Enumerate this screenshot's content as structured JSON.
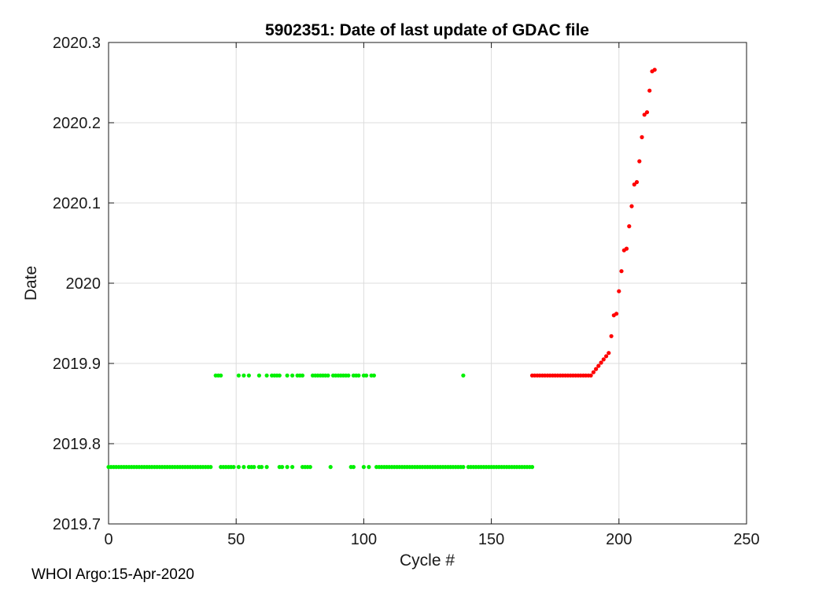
{
  "figure": {
    "footer_credit": "WHOI Argo:15-Apr-2020"
  },
  "chart_data": {
    "type": "scatter",
    "title": "5902351: Date of last update of GDAC file",
    "xlabel": "Cycle #",
    "ylabel": "Date",
    "xlim": [
      0,
      250
    ],
    "ylim": [
      2019.7,
      2020.3
    ],
    "xticks": [
      0,
      50,
      100,
      150,
      200,
      250
    ],
    "xtick_labels": [
      "0",
      "50",
      "100",
      "150",
      "200",
      "250"
    ],
    "yticks": [
      2019.7,
      2019.8,
      2019.9,
      2020,
      2020.1,
      2020.2,
      2020.3
    ],
    "ytick_labels": [
      "2019.7",
      "2019.8",
      "2019.9",
      "2020",
      "2020.1",
      "2020.2",
      "2020.3"
    ],
    "grid": true,
    "legend": "none",
    "colors": {
      "grid": "#dcdcdc",
      "axis": "#1a1a1a",
      "green_series": "#00f000",
      "red_series": "#ff0000"
    },
    "marker_diameter_px": 5.2,
    "series": [
      {
        "name": "green-lower-band",
        "color": "#00f000",
        "y": 2019.771,
        "cycles": [
          0,
          1,
          2,
          3,
          4,
          5,
          6,
          7,
          8,
          9,
          10,
          11,
          12,
          13,
          14,
          15,
          16,
          17,
          18,
          19,
          20,
          21,
          22,
          23,
          24,
          25,
          26,
          27,
          28,
          29,
          30,
          31,
          32,
          33,
          34,
          35,
          36,
          37,
          38,
          39,
          40,
          44,
          45,
          46,
          47,
          48,
          49,
          51,
          53,
          55,
          56,
          57,
          59,
          60,
          62,
          67,
          68,
          70,
          72,
          76,
          77,
          78,
          79,
          87,
          95,
          96,
          100,
          102,
          105,
          106,
          107,
          108,
          109,
          110,
          111,
          112,
          113,
          114,
          115,
          116,
          117,
          118,
          119,
          120,
          121,
          122,
          123,
          124,
          125,
          126,
          127,
          128,
          129,
          130,
          131,
          132,
          133,
          134,
          135,
          136,
          137,
          138,
          139,
          141,
          142,
          143,
          144,
          145,
          146,
          147,
          148,
          149,
          150,
          151,
          152,
          153,
          154,
          155,
          156,
          157,
          158,
          159,
          160,
          161,
          162,
          163,
          164,
          165,
          166
        ]
      },
      {
        "name": "green-upper-band",
        "color": "#00f000",
        "y": 2019.885,
        "cycles": [
          42,
          43,
          44,
          51,
          53,
          55,
          59,
          62,
          64,
          65,
          66,
          67,
          70,
          72,
          74,
          75,
          76,
          80,
          81,
          82,
          83,
          84,
          85,
          86,
          88,
          89,
          90,
          91,
          92,
          93,
          94,
          96,
          97,
          98,
          100,
          101,
          103,
          104,
          139
        ]
      },
      {
        "name": "red-flat-segment",
        "color": "#ff0000",
        "y": 2019.885,
        "cycles": [
          166,
          167,
          168,
          169,
          170,
          171,
          172,
          173,
          174,
          175,
          176,
          177,
          178,
          179,
          180,
          181,
          182,
          183,
          184,
          185,
          186,
          187,
          188,
          189
        ]
      },
      {
        "name": "red-rising-segment",
        "color": "#ff0000",
        "points": [
          [
            190,
            2019.889
          ],
          [
            191,
            2019.893
          ],
          [
            192,
            2019.897
          ],
          [
            193,
            2019.901
          ],
          [
            194,
            2019.905
          ],
          [
            195,
            2019.909
          ],
          [
            196,
            2019.913
          ],
          [
            197,
            2019.934
          ],
          [
            198,
            2019.96
          ],
          [
            199,
            2019.962
          ],
          [
            200,
            2019.99
          ],
          [
            201,
            2020.015
          ],
          [
            202,
            2020.041
          ],
          [
            203,
            2020.043
          ],
          [
            204,
            2020.071
          ],
          [
            205,
            2020.096
          ],
          [
            206,
            2020.123
          ],
          [
            207,
            2020.126
          ],
          [
            208,
            2020.152
          ],
          [
            209,
            2020.182
          ],
          [
            210,
            2020.21
          ],
          [
            211,
            2020.213
          ],
          [
            212,
            2020.24
          ],
          [
            213,
            2020.264
          ],
          [
            214,
            2020.266
          ]
        ]
      }
    ]
  }
}
